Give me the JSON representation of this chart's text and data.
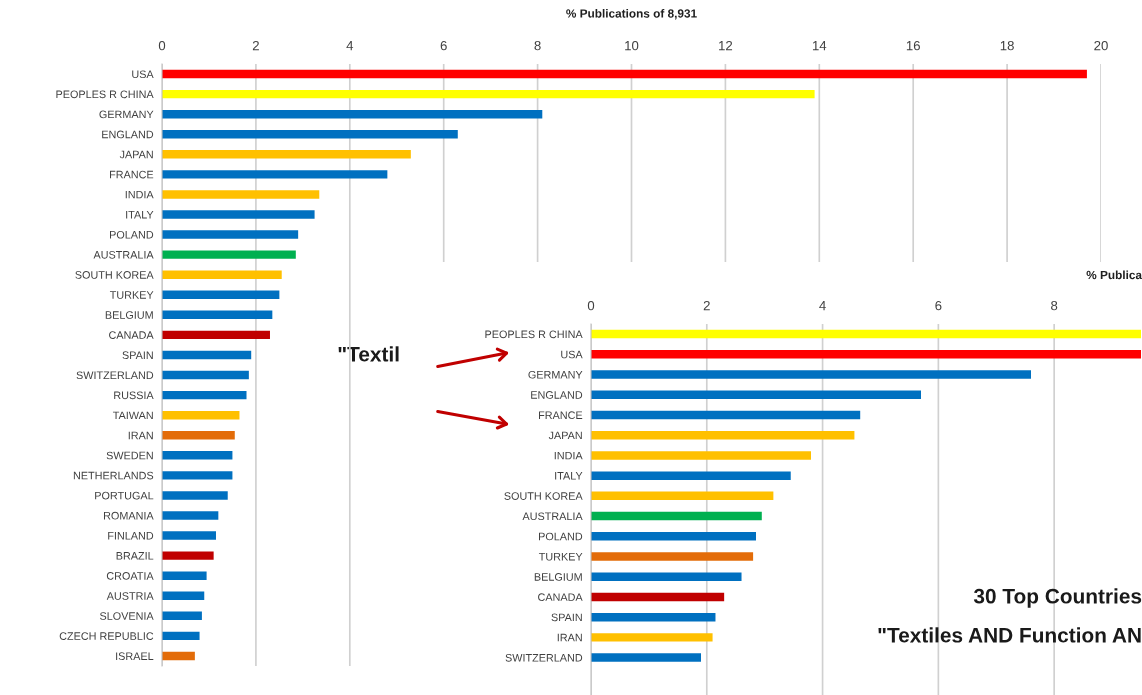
{
  "chart_data": [
    {
      "type": "bar",
      "orientation": "horizontal",
      "xlabel": "% Publications of 8,931",
      "xlim": [
        0,
        20
      ],
      "xticks": [
        0,
        2,
        4,
        6,
        8,
        10,
        12,
        14,
        16,
        18,
        20
      ],
      "grid": "x",
      "categories": [
        "USA",
        "PEOPLES R CHINA",
        "GERMANY",
        "ENGLAND",
        "JAPAN",
        "FRANCE",
        "INDIA",
        "ITALY",
        "POLAND",
        "AUSTRALIA",
        "SOUTH KOREA",
        "TURKEY",
        "BELGIUM",
        "CANADA",
        "SPAIN",
        "SWITZERLAND",
        "RUSSIA",
        "TAIWAN",
        "IRAN",
        "SWEDEN",
        "NETHERLANDS",
        "PORTUGAL",
        "ROMANIA",
        "FINLAND",
        "BRAZIL",
        "CROATIA",
        "AUSTRIA",
        "SLOVENIA",
        "CZECH REPUBLIC",
        "ISRAEL"
      ],
      "values": [
        19.7,
        13.9,
        8.1,
        6.3,
        5.3,
        4.8,
        3.35,
        3.25,
        2.9,
        2.85,
        2.55,
        2.5,
        2.35,
        2.3,
        1.9,
        1.85,
        1.8,
        1.65,
        1.55,
        1.5,
        1.5,
        1.4,
        1.2,
        1.15,
        1.1,
        0.95,
        0.9,
        0.85,
        0.8,
        0.7
      ],
      "colors": [
        "#ff0000",
        "#ffff00",
        "#0070c0",
        "#0070c0",
        "#ffc000",
        "#0070c0",
        "#ffc000",
        "#0070c0",
        "#0070c0",
        "#00b050",
        "#ffc000",
        "#0070c0",
        "#0070c0",
        "#c00000",
        "#0070c0",
        "#0070c0",
        "#0070c0",
        "#ffc000",
        "#e36c09",
        "#0070c0",
        "#0070c0",
        "#0070c0",
        "#0070c0",
        "#0070c0",
        "#c00000",
        "#0070c0",
        "#0070c0",
        "#0070c0",
        "#0070c0",
        "#e36c09"
      ],
      "annotations": [
        "\"Textil"
      ]
    },
    {
      "type": "bar",
      "orientation": "horizontal",
      "xlabel": "% Publica",
      "xlim": [
        0,
        9.5
      ],
      "xticks": [
        0,
        2,
        4,
        6,
        8
      ],
      "grid": "x",
      "categories": [
        "PEOPLES R CHINA",
        "USA",
        "GERMANY",
        "ENGLAND",
        "FRANCE",
        "JAPAN",
        "INDIA",
        "ITALY",
        "SOUTH KOREA",
        "AUSTRALIA",
        "POLAND",
        "TURKEY",
        "BELGIUM",
        "CANADA",
        "SPAIN",
        "IRAN",
        "SWITZERLAND"
      ],
      "values": [
        9.5,
        9.5,
        7.6,
        5.7,
        4.65,
        4.55,
        3.8,
        3.45,
        3.15,
        2.95,
        2.85,
        2.8,
        2.6,
        2.3,
        2.15,
        2.1,
        1.9
      ],
      "colors": [
        "#ffff00",
        "#ff0000",
        "#0070c0",
        "#0070c0",
        "#0070c0",
        "#ffc000",
        "#ffc000",
        "#0070c0",
        "#ffc000",
        "#00b050",
        "#0070c0",
        "#e36c09",
        "#0070c0",
        "#c00000",
        "#0070c0",
        "#ffc000",
        "#0070c0"
      ],
      "annotations": [
        "30 Top Countries",
        "\"Textiles AND Function AN"
      ]
    }
  ]
}
